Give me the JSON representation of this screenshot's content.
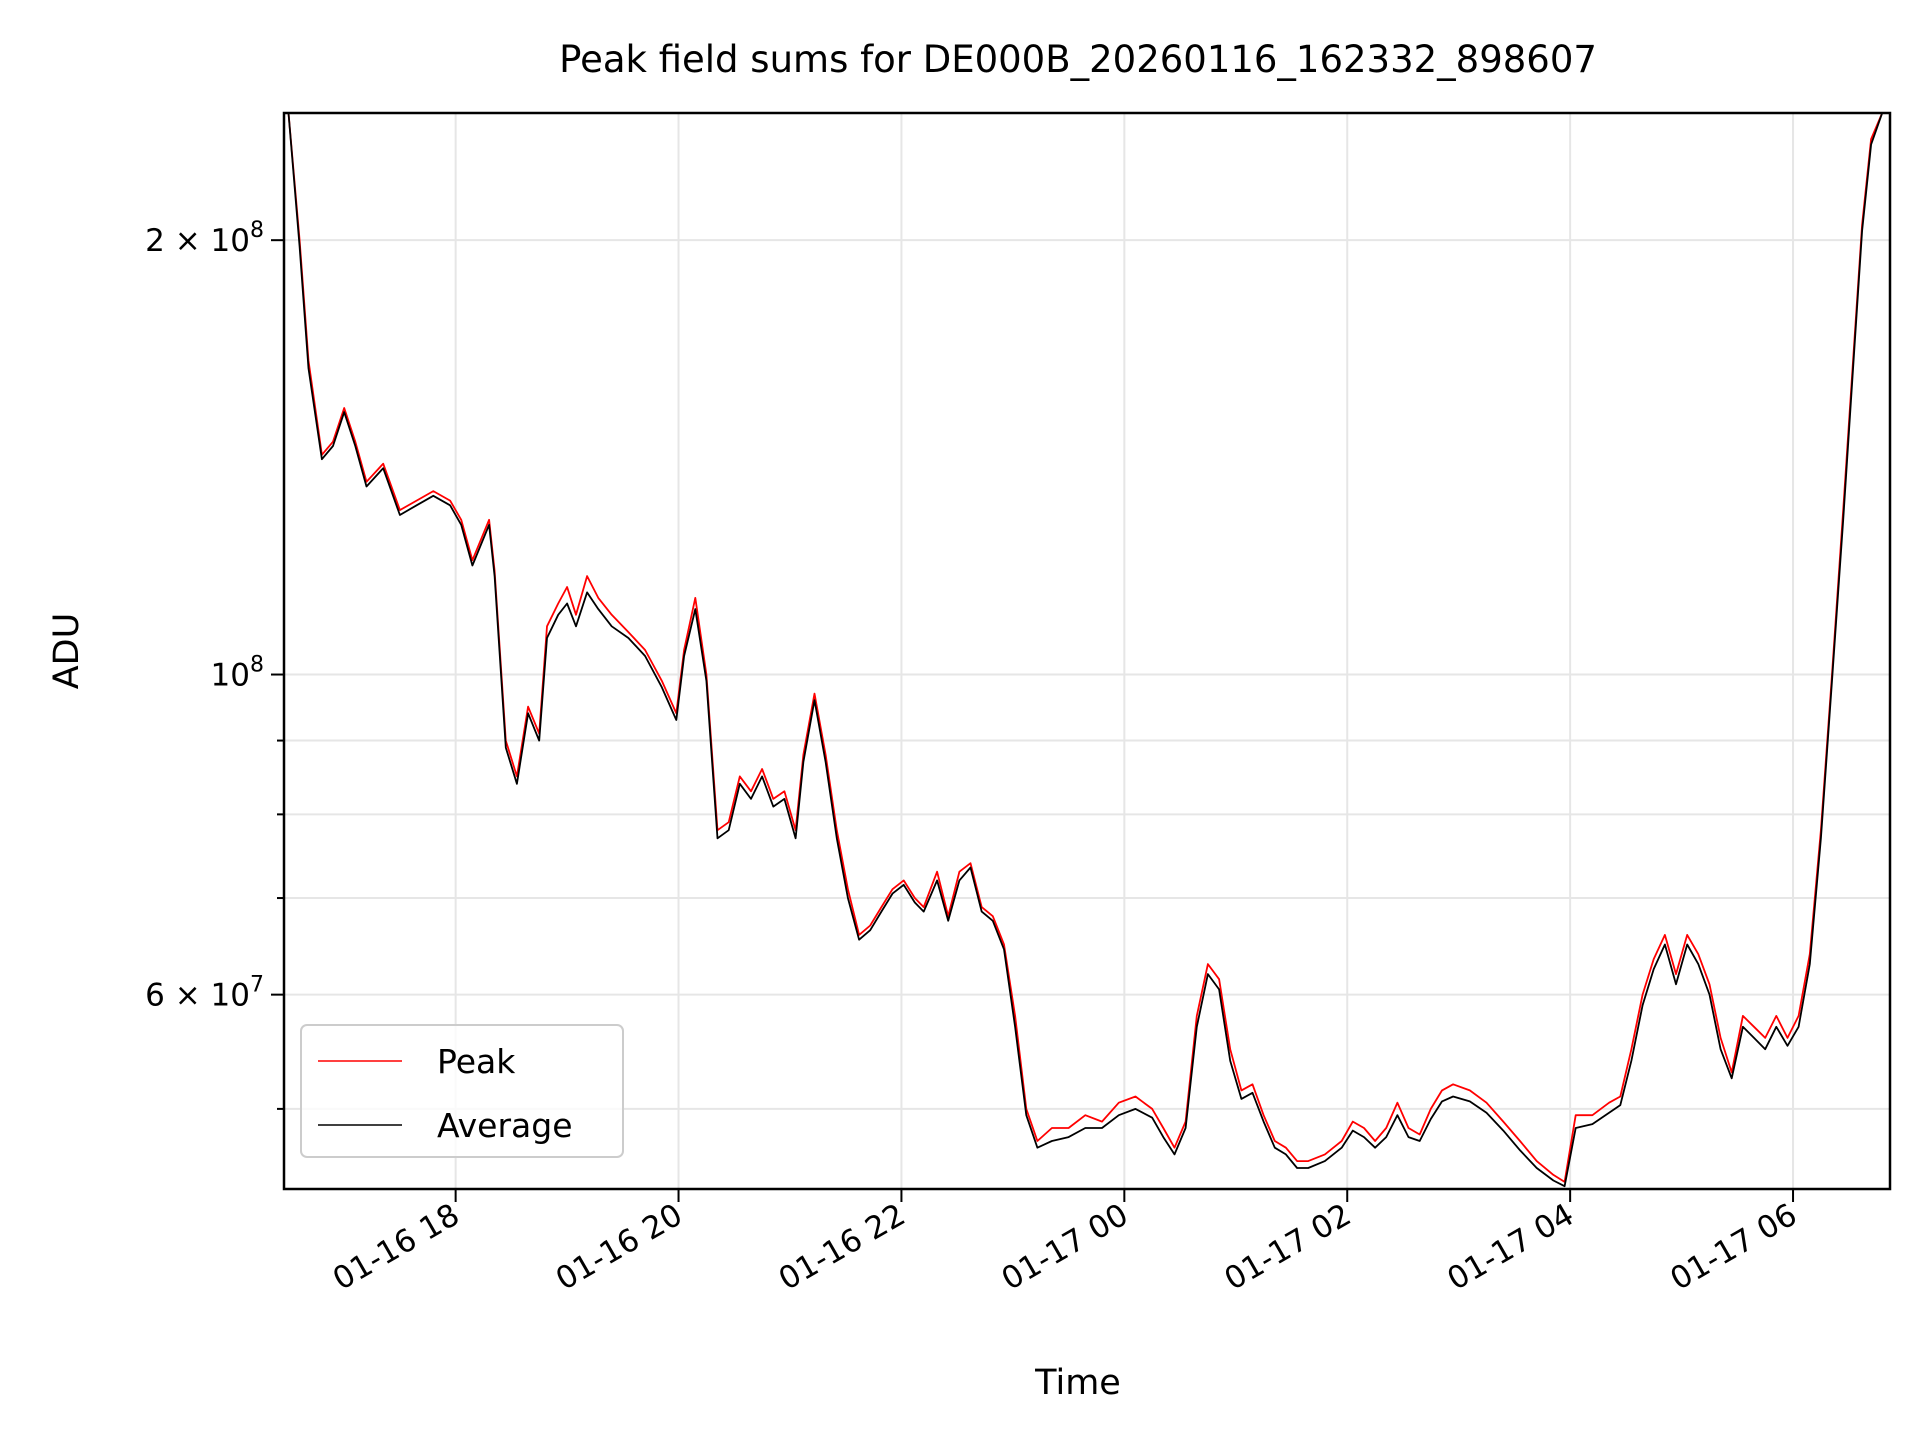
{
  "chart_data": {
    "type": "line",
    "title": "Peak field sums for DE000B_20260116_162332_898607",
    "xlabel": "Time",
    "ylabel": "ADU",
    "yscale": "log",
    "ylim": [
      44000000,
      245000000
    ],
    "xlim_hours": [
      16.46,
      30.87
    ],
    "x_ticks": [
      {
        "label": "01-16 18",
        "hour": 18
      },
      {
        "label": "01-16 20",
        "hour": 20
      },
      {
        "label": "01-16 22",
        "hour": 22
      },
      {
        "label": "01-17 00",
        "hour": 24
      },
      {
        "label": "01-17 02",
        "hour": 26
      },
      {
        "label": "01-17 04",
        "hour": 28
      },
      {
        "label": "01-17 06",
        "hour": 30
      }
    ],
    "y_ticks": [
      {
        "label_base": "2 × 10",
        "label_exp": "8",
        "value": 200000000
      },
      {
        "label_base": "10",
        "label_exp": "8",
        "value": 100000000
      },
      {
        "label_base": "6 × 10",
        "label_exp": "7",
        "value": 60000000
      }
    ],
    "y_minor_ticks": [
      50000000,
      70000000,
      80000000,
      90000000
    ],
    "grid": true,
    "legend_position": "lower-left",
    "series": [
      {
        "name": "Peak",
        "color": "#ff0000",
        "points": [
          [
            16.5,
            245000000
          ],
          [
            16.6,
            200000000
          ],
          [
            16.68,
            165000000
          ],
          [
            16.8,
            142000000
          ],
          [
            16.9,
            145000000
          ],
          [
            17.0,
            153000000
          ],
          [
            17.1,
            145000000
          ],
          [
            17.2,
            136000000
          ],
          [
            17.35,
            140000000
          ],
          [
            17.5,
            130000000
          ],
          [
            17.65,
            132000000
          ],
          [
            17.8,
            134000000
          ],
          [
            17.95,
            132000000
          ],
          [
            18.05,
            128000000
          ],
          [
            18.15,
            120000000
          ],
          [
            18.3,
            128000000
          ],
          [
            18.35,
            118000000
          ],
          [
            18.45,
            90000000
          ],
          [
            18.55,
            85000000
          ],
          [
            18.65,
            95000000
          ],
          [
            18.75,
            91000000
          ],
          [
            18.82,
            108000000
          ],
          [
            18.92,
            112000000
          ],
          [
            19.0,
            115000000
          ],
          [
            19.08,
            110000000
          ],
          [
            19.18,
            117000000
          ],
          [
            19.28,
            113000000
          ],
          [
            19.4,
            110000000
          ],
          [
            19.55,
            107000000
          ],
          [
            19.7,
            104000000
          ],
          [
            19.85,
            99000000
          ],
          [
            19.98,
            94000000
          ],
          [
            20.05,
            104000000
          ],
          [
            20.15,
            113000000
          ],
          [
            20.25,
            100000000
          ],
          [
            20.35,
            78000000
          ],
          [
            20.45,
            79000000
          ],
          [
            20.55,
            85000000
          ],
          [
            20.65,
            83000000
          ],
          [
            20.75,
            86000000
          ],
          [
            20.85,
            82000000
          ],
          [
            20.95,
            83000000
          ],
          [
            21.05,
            78000000
          ],
          [
            21.12,
            88000000
          ],
          [
            21.22,
            97000000
          ],
          [
            21.32,
            88000000
          ],
          [
            21.42,
            78000000
          ],
          [
            21.52,
            71000000
          ],
          [
            21.62,
            66000000
          ],
          [
            21.72,
            67000000
          ],
          [
            21.82,
            69000000
          ],
          [
            21.92,
            71000000
          ],
          [
            22.02,
            72000000
          ],
          [
            22.12,
            70000000
          ],
          [
            22.2,
            69000000
          ],
          [
            22.32,
            73000000
          ],
          [
            22.42,
            68000000
          ],
          [
            22.52,
            73000000
          ],
          [
            22.62,
            74000000
          ],
          [
            22.72,
            69000000
          ],
          [
            22.82,
            68000000
          ],
          [
            22.92,
            65000000
          ],
          [
            23.02,
            58000000
          ],
          [
            23.12,
            50000000
          ],
          [
            23.22,
            47500000
          ],
          [
            23.35,
            48500000
          ],
          [
            23.5,
            48500000
          ],
          [
            23.65,
            49500000
          ],
          [
            23.8,
            49000000
          ],
          [
            23.95,
            50500000
          ],
          [
            24.1,
            51000000
          ],
          [
            24.25,
            50000000
          ],
          [
            24.35,
            48500000
          ],
          [
            24.45,
            47000000
          ],
          [
            24.55,
            49000000
          ],
          [
            24.65,
            58000000
          ],
          [
            24.75,
            63000000
          ],
          [
            24.85,
            61500000
          ],
          [
            24.95,
            55000000
          ],
          [
            25.05,
            51500000
          ],
          [
            25.15,
            52000000
          ],
          [
            25.25,
            49500000
          ],
          [
            25.35,
            47500000
          ],
          [
            25.45,
            47000000
          ],
          [
            25.55,
            46000000
          ],
          [
            25.65,
            46000000
          ],
          [
            25.8,
            46500000
          ],
          [
            25.95,
            47500000
          ],
          [
            26.05,
            49000000
          ],
          [
            26.15,
            48500000
          ],
          [
            26.25,
            47500000
          ],
          [
            26.35,
            48500000
          ],
          [
            26.45,
            50500000
          ],
          [
            26.55,
            48500000
          ],
          [
            26.65,
            48000000
          ],
          [
            26.75,
            50000000
          ],
          [
            26.85,
            51500000
          ],
          [
            26.95,
            52000000
          ],
          [
            27.1,
            51500000
          ],
          [
            27.25,
            50500000
          ],
          [
            27.4,
            49000000
          ],
          [
            27.55,
            47500000
          ],
          [
            27.7,
            46000000
          ],
          [
            27.85,
            45000000
          ],
          [
            27.95,
            44500000
          ],
          [
            28.05,
            49500000
          ],
          [
            28.2,
            49500000
          ],
          [
            28.35,
            50500000
          ],
          [
            28.45,
            51000000
          ],
          [
            28.55,
            55000000
          ],
          [
            28.65,
            60000000
          ],
          [
            28.75,
            63500000
          ],
          [
            28.85,
            66000000
          ],
          [
            28.95,
            62000000
          ],
          [
            29.05,
            66000000
          ],
          [
            29.15,
            64000000
          ],
          [
            29.25,
            61000000
          ],
          [
            29.35,
            56000000
          ],
          [
            29.45,
            53000000
          ],
          [
            29.55,
            58000000
          ],
          [
            29.65,
            57000000
          ],
          [
            29.75,
            56000000
          ],
          [
            29.85,
            58000000
          ],
          [
            29.95,
            56000000
          ],
          [
            30.05,
            58000000
          ],
          [
            30.15,
            64000000
          ],
          [
            30.25,
            78000000
          ],
          [
            30.35,
            100000000
          ],
          [
            30.45,
            130000000
          ],
          [
            30.55,
            170000000
          ],
          [
            30.62,
            205000000
          ],
          [
            30.7,
            235000000
          ],
          [
            30.8,
            245000000
          ]
        ]
      },
      {
        "name": "Average",
        "color": "#000000",
        "points": [
          [
            16.5,
            245000000
          ],
          [
            16.6,
            198000000
          ],
          [
            16.68,
            163000000
          ],
          [
            16.8,
            141000000
          ],
          [
            16.9,
            144000000
          ],
          [
            17.0,
            152000000
          ],
          [
            17.1,
            144000000
          ],
          [
            17.2,
            135000000
          ],
          [
            17.35,
            139000000
          ],
          [
            17.5,
            129000000
          ],
          [
            17.65,
            131000000
          ],
          [
            17.8,
            133000000
          ],
          [
            17.95,
            131000000
          ],
          [
            18.05,
            127000000
          ],
          [
            18.15,
            119000000
          ],
          [
            18.3,
            127000000
          ],
          [
            18.35,
            117000000
          ],
          [
            18.45,
            89000000
          ],
          [
            18.55,
            84000000
          ],
          [
            18.65,
            94000000
          ],
          [
            18.75,
            90000000
          ],
          [
            18.82,
            106000000
          ],
          [
            18.92,
            110000000
          ],
          [
            19.0,
            112000000
          ],
          [
            19.08,
            108000000
          ],
          [
            19.18,
            114000000
          ],
          [
            19.28,
            111000000
          ],
          [
            19.4,
            108000000
          ],
          [
            19.55,
            106000000
          ],
          [
            19.7,
            103000000
          ],
          [
            19.85,
            98000000
          ],
          [
            19.98,
            93000000
          ],
          [
            20.05,
            103000000
          ],
          [
            20.15,
            111000000
          ],
          [
            20.25,
            99000000
          ],
          [
            20.35,
            77000000
          ],
          [
            20.45,
            78000000
          ],
          [
            20.55,
            84000000
          ],
          [
            20.65,
            82000000
          ],
          [
            20.75,
            85000000
          ],
          [
            20.85,
            81000000
          ],
          [
            20.95,
            82000000
          ],
          [
            21.05,
            77000000
          ],
          [
            21.12,
            87000000
          ],
          [
            21.22,
            96000000
          ],
          [
            21.32,
            87000000
          ],
          [
            21.42,
            77000000
          ],
          [
            21.52,
            70000000
          ],
          [
            21.62,
            65500000
          ],
          [
            21.72,
            66500000
          ],
          [
            21.82,
            68500000
          ],
          [
            21.92,
            70500000
          ],
          [
            22.02,
            71500000
          ],
          [
            22.12,
            69500000
          ],
          [
            22.2,
            68500000
          ],
          [
            22.32,
            72000000
          ],
          [
            22.42,
            67500000
          ],
          [
            22.52,
            72000000
          ],
          [
            22.62,
            73500000
          ],
          [
            22.72,
            68500000
          ],
          [
            22.82,
            67500000
          ],
          [
            22.92,
            64500000
          ],
          [
            23.02,
            57000000
          ],
          [
            23.12,
            49500000
          ],
          [
            23.22,
            47000000
          ],
          [
            23.35,
            47500000
          ],
          [
            23.5,
            47800000
          ],
          [
            23.65,
            48500000
          ],
          [
            23.8,
            48500000
          ],
          [
            23.95,
            49500000
          ],
          [
            24.1,
            50000000
          ],
          [
            24.25,
            49300000
          ],
          [
            24.35,
            47800000
          ],
          [
            24.45,
            46500000
          ],
          [
            24.55,
            48500000
          ],
          [
            24.65,
            57000000
          ],
          [
            24.75,
            62000000
          ],
          [
            24.85,
            60500000
          ],
          [
            24.95,
            54000000
          ],
          [
            25.05,
            50800000
          ],
          [
            25.15,
            51300000
          ],
          [
            25.25,
            49000000
          ],
          [
            25.35,
            47000000
          ],
          [
            25.45,
            46500000
          ],
          [
            25.55,
            45500000
          ],
          [
            25.65,
            45500000
          ],
          [
            25.8,
            46000000
          ],
          [
            25.95,
            47000000
          ],
          [
            26.05,
            48300000
          ],
          [
            26.15,
            47800000
          ],
          [
            26.25,
            47000000
          ],
          [
            26.35,
            47800000
          ],
          [
            26.45,
            49500000
          ],
          [
            26.55,
            47800000
          ],
          [
            26.65,
            47500000
          ],
          [
            26.75,
            49200000
          ],
          [
            26.85,
            50600000
          ],
          [
            26.95,
            51000000
          ],
          [
            27.1,
            50600000
          ],
          [
            27.25,
            49700000
          ],
          [
            27.4,
            48300000
          ],
          [
            27.55,
            46800000
          ],
          [
            27.7,
            45500000
          ],
          [
            27.85,
            44600000
          ],
          [
            27.95,
            44200000
          ],
          [
            28.05,
            48500000
          ],
          [
            28.2,
            48800000
          ],
          [
            28.35,
            49700000
          ],
          [
            28.45,
            50300000
          ],
          [
            28.55,
            54000000
          ],
          [
            28.65,
            59000000
          ],
          [
            28.75,
            62500000
          ],
          [
            28.85,
            65000000
          ],
          [
            28.95,
            61000000
          ],
          [
            29.05,
            65000000
          ],
          [
            29.15,
            63000000
          ],
          [
            29.25,
            60000000
          ],
          [
            29.35,
            55000000
          ],
          [
            29.45,
            52500000
          ],
          [
            29.55,
            57000000
          ],
          [
            29.65,
            56000000
          ],
          [
            29.75,
            55000000
          ],
          [
            29.85,
            57000000
          ],
          [
            29.95,
            55300000
          ],
          [
            30.05,
            57000000
          ],
          [
            30.15,
            63000000
          ],
          [
            30.25,
            77000000
          ],
          [
            30.35,
            99000000
          ],
          [
            30.45,
            128000000
          ],
          [
            30.55,
            168000000
          ],
          [
            30.62,
            203000000
          ],
          [
            30.7,
            233000000
          ],
          [
            30.8,
            245000000
          ]
        ]
      }
    ]
  }
}
